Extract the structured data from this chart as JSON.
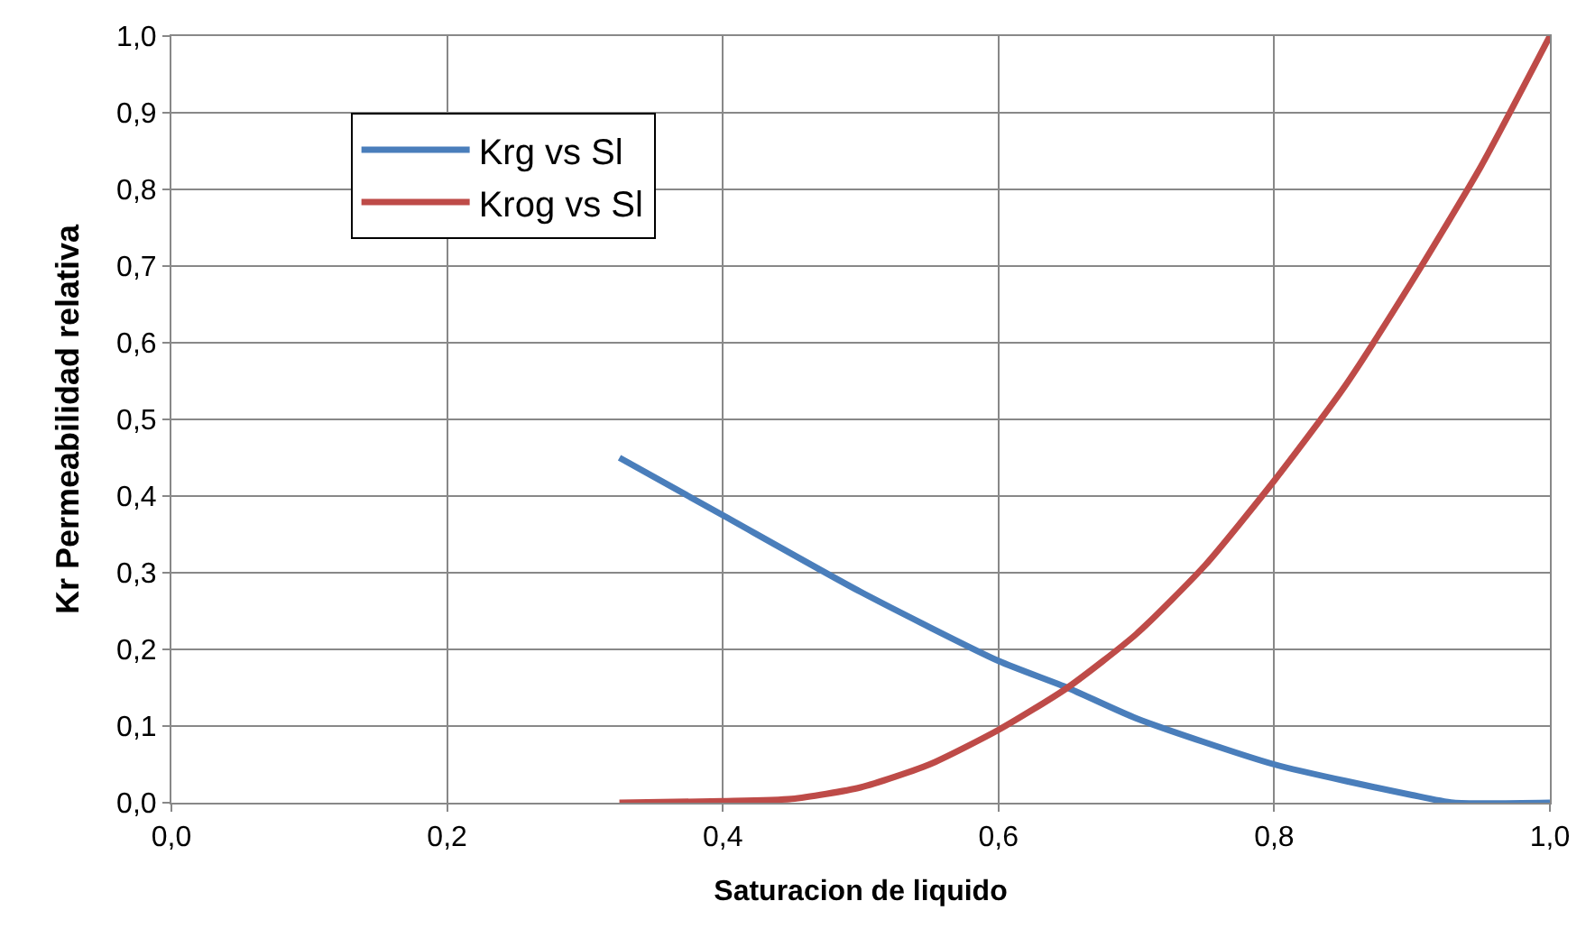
{
  "chart_data": {
    "type": "line",
    "xlabel": "Saturacion de liquido",
    "ylabel": "Kr Permeabilidad relativa",
    "xlim": [
      0,
      1
    ],
    "ylim": [
      0,
      1
    ],
    "xticks": [
      {
        "value": 0,
        "label": "0,0"
      },
      {
        "value": 0.2,
        "label": "0,2"
      },
      {
        "value": 0.4,
        "label": "0,4"
      },
      {
        "value": 0.6,
        "label": "0,6"
      },
      {
        "value": 0.8,
        "label": "0,8"
      },
      {
        "value": 1,
        "label": "1,0"
      }
    ],
    "yticks": [
      {
        "value": 0,
        "label": "0,0"
      },
      {
        "value": 0.1,
        "label": "0,1"
      },
      {
        "value": 0.2,
        "label": "0,2"
      },
      {
        "value": 0.3,
        "label": "0,3"
      },
      {
        "value": 0.4,
        "label": "0,4"
      },
      {
        "value": 0.5,
        "label": "0,5"
      },
      {
        "value": 0.6,
        "label": "0,6"
      },
      {
        "value": 0.7,
        "label": "0,7"
      },
      {
        "value": 0.8,
        "label": "0,8"
      },
      {
        "value": 0.9,
        "label": "0,9"
      },
      {
        "value": 1,
        "label": "1,0"
      }
    ],
    "grid": true,
    "legend": "top left",
    "marker": "none",
    "line_style": "solid",
    "series": [
      {
        "name": "Krg vs Sl",
        "color": "#4a7ebb",
        "x": [
          0.325,
          0.4,
          0.5,
          0.6,
          0.65,
          0.7,
          0.8,
          0.9,
          0.93,
          1.0
        ],
        "values": [
          0.45,
          0.375,
          0.275,
          0.185,
          0.15,
          0.11,
          0.05,
          0.01,
          0,
          0
        ]
      },
      {
        "name": "Krog vs Sl",
        "color": "#be4b48",
        "x": [
          0.325,
          0.4,
          0.45,
          0.5,
          0.55,
          0.6,
          0.65,
          0.7,
          0.75,
          0.8,
          0.85,
          0.9,
          0.95,
          1.0
        ],
        "values": [
          0,
          0.002,
          0.005,
          0.02,
          0.05,
          0.095,
          0.15,
          0.22,
          0.31,
          0.42,
          0.54,
          0.68,
          0.83,
          1.0
        ]
      }
    ]
  }
}
